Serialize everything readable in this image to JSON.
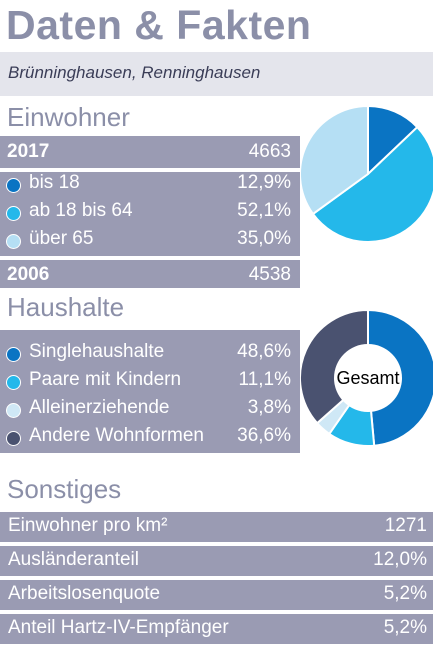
{
  "title": "Daten & Fakten",
  "subtitle": "Brünninghausen, Renninghausen",
  "einwohner": {
    "heading": "Einwohner",
    "year_2017": "2017",
    "total_2017": "4663",
    "year_2006": "2006",
    "total_2006": "4538"
  },
  "haushalte": {
    "heading": "Haushalte"
  },
  "sonstiges": {
    "heading": "Sonstiges",
    "rows": [
      {
        "label": "Einwohner pro km²",
        "value": "1271"
      },
      {
        "label": "Ausländeranteil",
        "value": "12,0%"
      },
      {
        "label": "Arbeitslosenquote",
        "value": "5,2%"
      },
      {
        "label": "Anteil Hartz-IV-Empfänger",
        "value": "5,2%"
      }
    ]
  },
  "colors": {
    "title": "#8b8fa8",
    "band": "#9a9bb3",
    "dark_blue": "#0a74c3",
    "light_blue": "#24b8ea",
    "pale_blue": "#b5dff4",
    "very_pale_blue": "#cfe8f6",
    "slate": "#4a5270"
  },
  "chart_data": [
    {
      "type": "pie",
      "categories": [
        "bis 18",
        "ab 18 bis 64",
        "über 65"
      ],
      "values": [
        12.9,
        52.1,
        35.0
      ],
      "labels": [
        "12,9%",
        "52,1%",
        "35,0%"
      ],
      "colors": [
        "#0a74c3",
        "#24b8ea",
        "#b5dff4"
      ]
    },
    {
      "type": "pie",
      "categories": [
        "Singlehaushalte",
        "Paare mit Kindern",
        "Alleinerziehende",
        "Andere Wohnformen"
      ],
      "values": [
        48.6,
        11.1,
        3.8,
        36.6
      ],
      "labels": [
        "48,6%",
        "11,1%",
        "3,8%",
        "36,6%"
      ],
      "colors": [
        "#0a74c3",
        "#24b8ea",
        "#cfe8f6",
        "#4a5270"
      ],
      "center_label": "Gesamt"
    }
  ]
}
